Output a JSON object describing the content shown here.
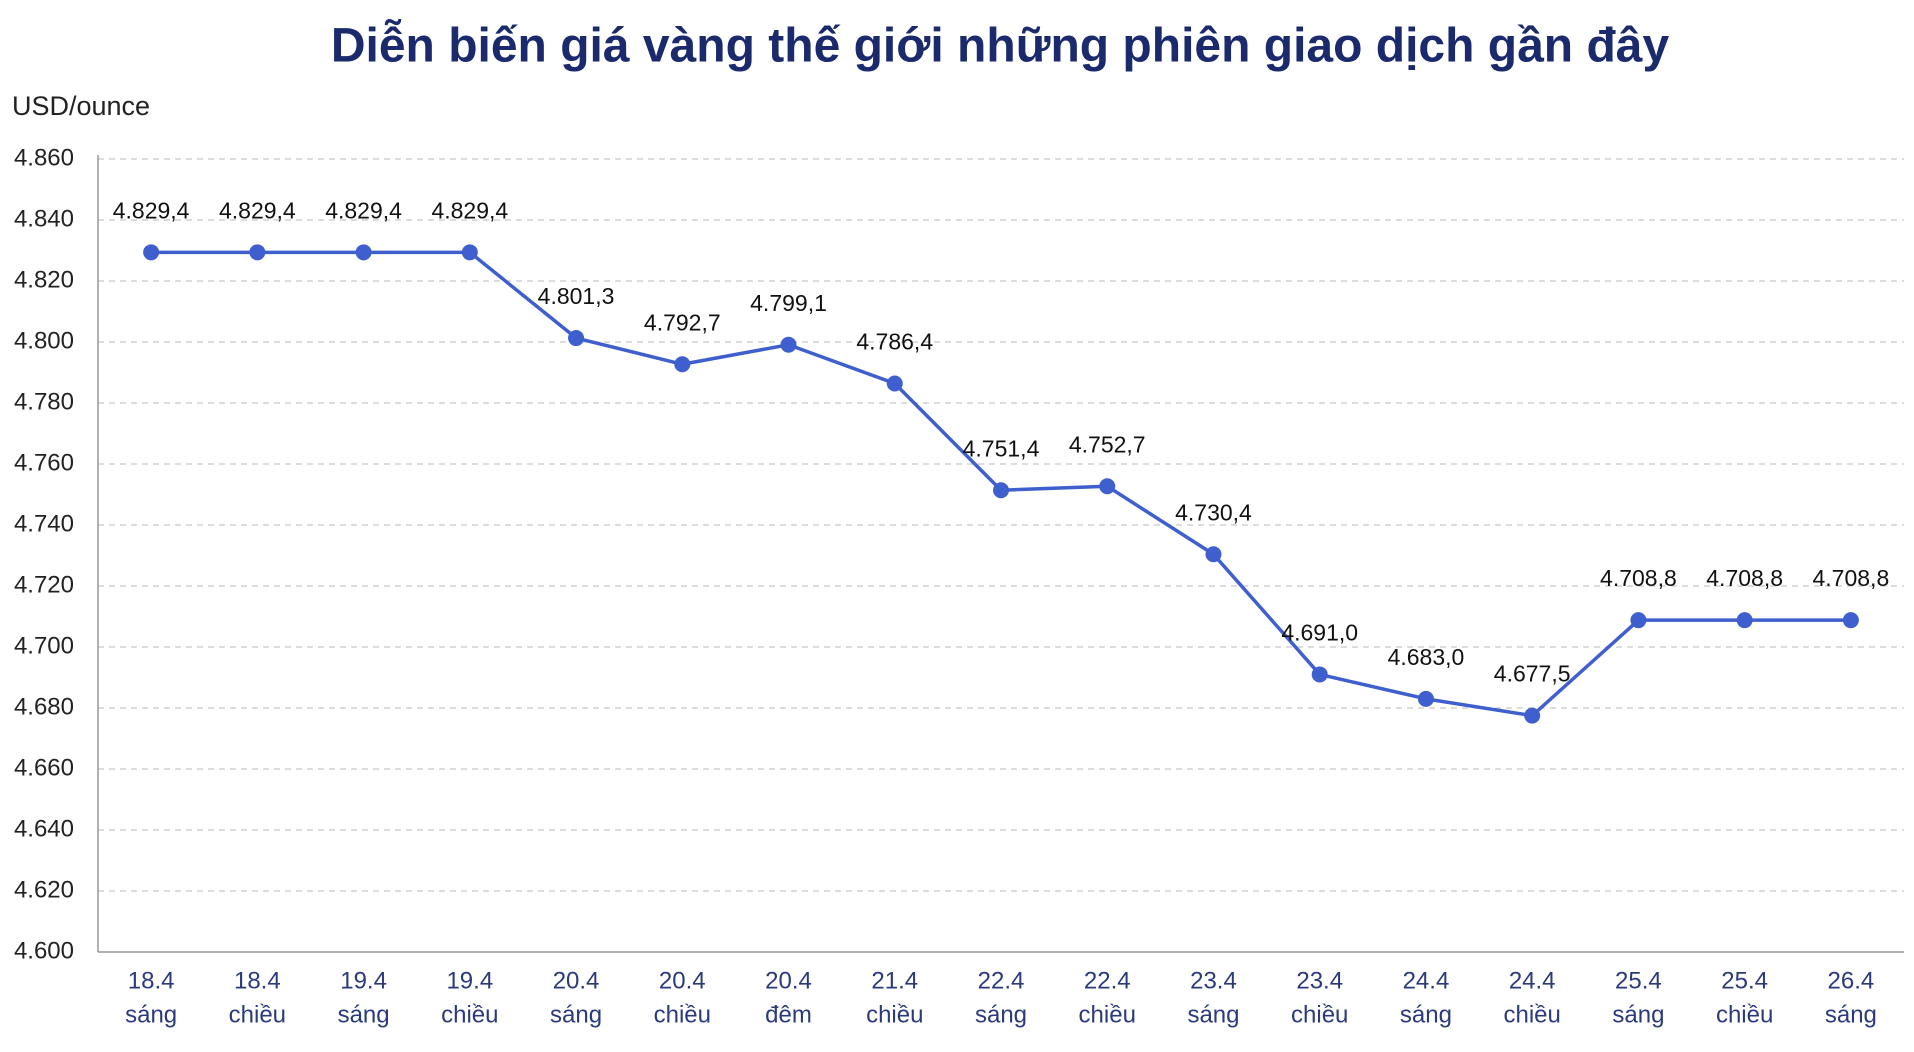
{
  "chart_data": {
    "type": "line",
    "title": "Diễn biến giá vàng thế giới những phiên giao dịch gần đây",
    "y_label": "USD/ounce",
    "categories": [
      [
        "18.4",
        "sáng"
      ],
      [
        "18.4",
        "chiều"
      ],
      [
        "19.4",
        "sáng"
      ],
      [
        "19.4",
        "chiều"
      ],
      [
        "20.4",
        "sáng"
      ],
      [
        "20.4",
        "chiều"
      ],
      [
        "20.4",
        "đêm"
      ],
      [
        "21.4",
        "chiều"
      ],
      [
        "22.4",
        "sáng"
      ],
      [
        "22.4",
        "chiều"
      ],
      [
        "23.4",
        "sáng"
      ],
      [
        "23.4",
        "chiều"
      ],
      [
        "24.4",
        "sáng"
      ],
      [
        "24.4",
        "chiều"
      ],
      [
        "25.4",
        "sáng"
      ],
      [
        "25.4",
        "chiều"
      ],
      [
        "26.4",
        "sáng"
      ]
    ],
    "series": [
      {
        "color": "#3f5fcf",
        "values": [
          4829.4,
          4829.4,
          4829.4,
          4829.4,
          4801.3,
          4792.7,
          4799.1,
          4786.4,
          4751.4,
          4752.7,
          4730.4,
          4691.0,
          4683.0,
          4677.5,
          4708.8,
          4708.8,
          4708.8
        ],
        "value_labels": [
          "4.829,4",
          "4.829,4",
          "4.829,4",
          "4.829,4",
          "4.801,3",
          "4.792,7",
          "4.799,1",
          "4.786,4",
          "4.751,4",
          "4.752,7",
          "4.730,4",
          "4.691,0",
          "4.683,0",
          "4.677,5",
          "4.708,8",
          "4.708,8",
          "4.708,8"
        ]
      }
    ],
    "ylim": [
      4600,
      4860
    ],
    "yticks": [
      {
        "value": 4600,
        "label": "4.600"
      },
      {
        "value": 4620,
        "label": "4.620"
      },
      {
        "value": 4640,
        "label": "4.640"
      },
      {
        "value": 4660,
        "label": "4.660"
      },
      {
        "value": 4680,
        "label": "4.680"
      },
      {
        "value": 4700,
        "label": "4.700"
      },
      {
        "value": 4720,
        "label": "4.720"
      },
      {
        "value": 4740,
        "label": "4.740"
      },
      {
        "value": 4760,
        "label": "4.760"
      },
      {
        "value": 4780,
        "label": "4.780"
      },
      {
        "value": 4800,
        "label": "4.800"
      },
      {
        "value": 4820,
        "label": "4.820"
      },
      {
        "value": 4840,
        "label": "4.840"
      },
      {
        "value": 4860,
        "label": "4.860"
      }
    ],
    "grid": true
  }
}
